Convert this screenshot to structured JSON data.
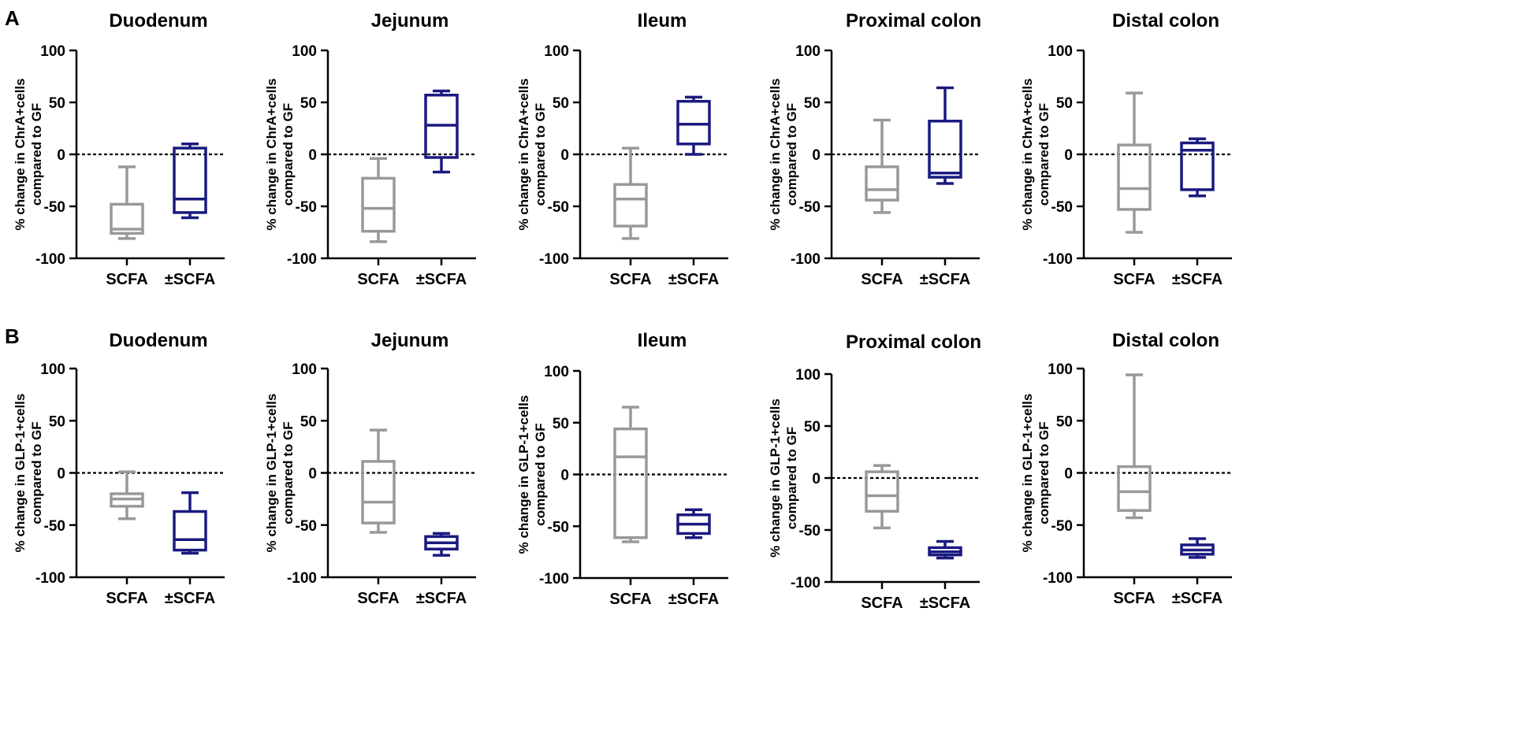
{
  "panel_labels": [
    "A",
    "B"
  ],
  "colors": {
    "scfa": "#999999",
    "pm_scfa": "#1a1a80",
    "axis": "#000000"
  },
  "chart_data": [
    {
      "type": "box",
      "panel": "A",
      "title": "Duodenum",
      "ylabel_line1": "% change in ChrA+cells",
      "ylabel_line2": "compared to GF",
      "ylim": [
        -100,
        100
      ],
      "yticks": [
        100,
        50,
        0,
        -50,
        -100
      ],
      "categories": [
        "SCFA",
        "±SCFA"
      ],
      "reference_line": 0,
      "boxes": [
        {
          "name": "SCFA",
          "min": -81,
          "q1": -76,
          "median": -72,
          "q3": -48,
          "max": -12
        },
        {
          "name": "±SCFA",
          "min": -61,
          "q1": -56,
          "median": -43,
          "q3": 6,
          "max": 10
        }
      ]
    },
    {
      "type": "box",
      "panel": "A",
      "title": "Jejunum",
      "ylabel_line1": "% change in ChrA+cells",
      "ylabel_line2": "compared to GF",
      "ylim": [
        -100,
        100
      ],
      "yticks": [
        100,
        50,
        0,
        -50,
        -100
      ],
      "categories": [
        "SCFA",
        "±SCFA"
      ],
      "reference_line": 0,
      "boxes": [
        {
          "name": "SCFA",
          "min": -84,
          "q1": -74,
          "median": -52,
          "q3": -23,
          "max": -4
        },
        {
          "name": "±SCFA",
          "min": -17,
          "q1": -3,
          "median": 28,
          "q3": 57,
          "max": 61
        }
      ]
    },
    {
      "type": "box",
      "panel": "A",
      "title": "Ileum",
      "ylabel_line1": "% change in ChrA+cells",
      "ylabel_line2": "compared to GF",
      "ylim": [
        -100,
        100
      ],
      "yticks": [
        100,
        50,
        0,
        -50,
        -100
      ],
      "categories": [
        "SCFA",
        "±SCFA"
      ],
      "reference_line": 0,
      "boxes": [
        {
          "name": "SCFA",
          "min": -81,
          "q1": -69,
          "median": -43,
          "q3": -29,
          "max": 6
        },
        {
          "name": "±SCFA",
          "min": 0,
          "q1": 10,
          "median": 29,
          "q3": 51,
          "max": 55
        }
      ]
    },
    {
      "type": "box",
      "panel": "A",
      "title": "Proximal colon",
      "ylabel_line1": "% change in ChrA+cells",
      "ylabel_line2": "compared to GF",
      "ylim": [
        -100,
        100
      ],
      "yticks": [
        100,
        50,
        0,
        -50,
        -100
      ],
      "categories": [
        "SCFA",
        "±SCFA"
      ],
      "reference_line": 0,
      "boxes": [
        {
          "name": "SCFA",
          "min": -56,
          "q1": -44,
          "median": -34,
          "q3": -12,
          "max": 33
        },
        {
          "name": "±SCFA",
          "min": -28,
          "q1": -22,
          "median": -18,
          "q3": 32,
          "max": 64
        }
      ]
    },
    {
      "type": "box",
      "panel": "A",
      "title": "Distal colon",
      "ylabel_line1": "% change in ChrA+cells",
      "ylabel_line2": "compared to GF",
      "ylim": [
        -100,
        100
      ],
      "yticks": [
        100,
        50,
        0,
        -50,
        -100
      ],
      "categories": [
        "SCFA",
        "±SCFA"
      ],
      "reference_line": 0,
      "boxes": [
        {
          "name": "SCFA",
          "min": -75,
          "q1": -53,
          "median": -33,
          "q3": 9,
          "max": 59
        },
        {
          "name": "±SCFA",
          "min": -40,
          "q1": -34,
          "median": 4,
          "q3": 11,
          "max": 15
        }
      ]
    },
    {
      "type": "box",
      "panel": "B",
      "title": "Duodenum",
      "ylabel_line1": "% change in GLP-1+cells",
      "ylabel_line2": "compared to GF",
      "ylim": [
        -100,
        100
      ],
      "yticks": [
        100,
        50,
        0,
        -50,
        -100
      ],
      "categories": [
        "SCFA",
        "±SCFA"
      ],
      "reference_line": 0,
      "boxes": [
        {
          "name": "SCFA",
          "min": -44,
          "q1": -32,
          "median": -25,
          "q3": -20,
          "max": 1
        },
        {
          "name": "±SCFA",
          "min": -77,
          "q1": -74,
          "median": -64,
          "q3": -37,
          "max": -19
        }
      ]
    },
    {
      "type": "box",
      "panel": "B",
      "title": "Jejunum",
      "ylabel_line1": "% change in GLP-1+cells",
      "ylabel_line2": "compared to GF",
      "ylim": [
        -100,
        100
      ],
      "yticks": [
        100,
        50,
        0,
        -50,
        -100
      ],
      "categories": [
        "SCFA",
        "±SCFA"
      ],
      "reference_line": 0,
      "boxes": [
        {
          "name": "SCFA",
          "min": -57,
          "q1": -48,
          "median": -28,
          "q3": 11,
          "max": 41
        },
        {
          "name": "±SCFA",
          "min": -79,
          "q1": -73,
          "median": -67,
          "q3": -61,
          "max": -58
        }
      ]
    },
    {
      "type": "box",
      "panel": "B",
      "title": "Ileum",
      "ylabel_line1": "% change in GLP-1+cells",
      "ylabel_line2": "compared to GF",
      "ylim": [
        -100,
        100
      ],
      "yticks": [
        100,
        50,
        0,
        -50,
        -100
      ],
      "categories": [
        "SCFA",
        "±SCFA"
      ],
      "reference_line": 0,
      "boxes": [
        {
          "name": "SCFA",
          "min": -65,
          "q1": -61,
          "median": 17,
          "q3": 44,
          "max": 65
        },
        {
          "name": "±SCFA",
          "min": -61,
          "q1": -57,
          "median": -48,
          "q3": -39,
          "max": -34
        }
      ]
    },
    {
      "type": "box",
      "panel": "B",
      "title": "Proximal colon",
      "ylabel_line1": "% change in GLP-1+cells",
      "ylabel_line2": "compared to GF",
      "ylim": [
        -100,
        100
      ],
      "yticks": [
        100,
        50,
        0,
        -50,
        -100
      ],
      "categories": [
        "SCFA",
        "±SCFA"
      ],
      "reference_line": 0,
      "boxes": [
        {
          "name": "SCFA",
          "min": -48,
          "q1": -32,
          "median": -17,
          "q3": 6,
          "max": 12
        },
        {
          "name": "±SCFA",
          "min": -77,
          "q1": -74,
          "median": -71,
          "q3": -67,
          "max": -61
        }
      ]
    },
    {
      "type": "box",
      "panel": "B",
      "title": "Distal colon",
      "ylabel_line1": "% change in GLP-1+cells",
      "ylabel_line2": "compared to GF",
      "ylim": [
        -100,
        100
      ],
      "yticks": [
        100,
        50,
        0,
        -50,
        -100
      ],
      "categories": [
        "SCFA",
        "±SCFA"
      ],
      "reference_line": 0,
      "boxes": [
        {
          "name": "SCFA",
          "min": -43,
          "q1": -36,
          "median": -18,
          "q3": 6,
          "max": 94
        },
        {
          "name": "±SCFA",
          "min": -81,
          "q1": -78,
          "median": -74,
          "q3": -69,
          "max": -63
        }
      ]
    }
  ]
}
